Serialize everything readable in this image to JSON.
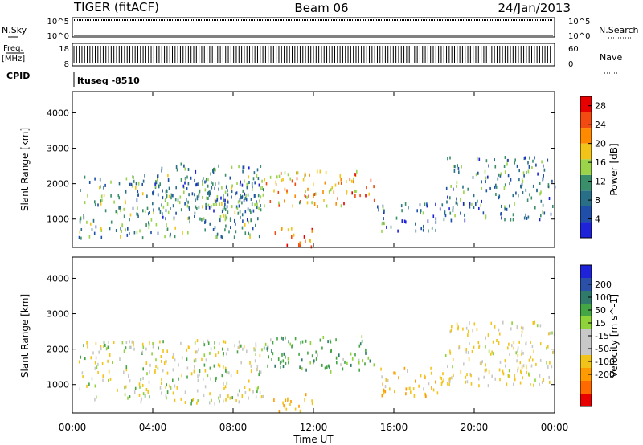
{
  "header": {
    "station": "TIGER (fitACF)",
    "beam": "Beam 06",
    "date": "24/Jan/2013"
  },
  "top_panels": {
    "nsky_label": "N.Sky",
    "nsearch_label": "N.Search",
    "nsky_ticks": [
      "10^5",
      "10^0"
    ],
    "nsearch_ticks": [
      "10^5",
      "10^0"
    ],
    "freq_label_1": "Freq.",
    "freq_label_2": "[MHz]",
    "freq_ticks": [
      "18",
      "8"
    ],
    "nave_label": "Nave",
    "nave_ticks": [
      "60",
      "0"
    ],
    "cpid_label": "CPID",
    "cpid_value": "ltuseq -8510"
  },
  "colors": {
    "power_scale": [
      "#1e22d8",
      "#1f4fa8",
      "#2a6f88",
      "#3a8f6a",
      "#9bd34a",
      "#f2c41a",
      "#ff8a00",
      "#f24a10",
      "#e80000"
    ],
    "velocity_scale": [
      "#1e22d8",
      "#2a50a8",
      "#2f7a6a",
      "#44a544",
      "#8fd33a",
      "#c8c8c8",
      "#c8c8c8",
      "#f2c41a",
      "#ff9a00",
      "#ff6a00",
      "#e80000"
    ]
  },
  "chart_data": [
    {
      "type": "heatmap",
      "title": "Power",
      "xlabel": "",
      "ylabel": "Slant Range [km]",
      "x_ticks": [
        "00:00",
        "04:00",
        "08:00",
        "12:00",
        "16:00",
        "20:00",
        "00:00"
      ],
      "x_hours": [
        0,
        4,
        8,
        12,
        16,
        20,
        24
      ],
      "xlim": [
        0,
        24
      ],
      "y_ticks": [
        1000,
        2000,
        3000,
        4000
      ],
      "ylim": [
        200,
        4600
      ],
      "colorbar_label": "Power [dB]",
      "colorbar_ticks": [
        4,
        8,
        12,
        16,
        20,
        24,
        28
      ],
      "colorbar_range": [
        0,
        30
      ],
      "regions": [
        {
          "t_start": 0.3,
          "t_end": 9.5,
          "r_min": 500,
          "r_max": 2300,
          "value": 11
        },
        {
          "t_start": 4,
          "t_end": 9.5,
          "r_min": 1000,
          "r_max": 2600,
          "value": 9
        },
        {
          "t_start": 9.5,
          "t_end": 15,
          "r_min": 1400,
          "r_max": 2400,
          "value": 20
        },
        {
          "t_start": 15,
          "t_end": 18.5,
          "r_min": 700,
          "r_max": 1500,
          "value": 8
        },
        {
          "t_start": 18.5,
          "t_end": 24,
          "r_min": 1000,
          "r_max": 2800,
          "value": 9
        },
        {
          "t_start": 10,
          "t_end": 12,
          "r_min": 250,
          "r_max": 800,
          "value": 22
        }
      ]
    },
    {
      "type": "heatmap",
      "title": "Velocity",
      "xlabel": "Time UT",
      "ylabel": "Slant Range [km]",
      "x_ticks": [
        "00:00",
        "04:00",
        "08:00",
        "12:00",
        "16:00",
        "20:00",
        "00:00"
      ],
      "x_hours": [
        0,
        4,
        8,
        12,
        16,
        20,
        24
      ],
      "xlim": [
        0,
        24
      ],
      "y_ticks": [
        1000,
        2000,
        3000,
        4000
      ],
      "ylim": [
        200,
        4600
      ],
      "colorbar_label": "Velocity [m s^-1]",
      "colorbar_ticks": [
        "200",
        "100",
        "50",
        "15",
        "-15",
        "-50",
        "-100",
        "-200"
      ],
      "regions": [
        {
          "t_start": 0.3,
          "t_end": 9.5,
          "r_min": 500,
          "r_max": 2300,
          "value": -5
        },
        {
          "t_start": 9.5,
          "t_end": 15,
          "r_min": 1400,
          "r_max": 2400,
          "value": 30
        },
        {
          "t_start": 15,
          "t_end": 18.5,
          "r_min": 700,
          "r_max": 1500,
          "value": -40
        },
        {
          "t_start": 18.5,
          "t_end": 24,
          "r_min": 1000,
          "r_max": 2800,
          "value": -20
        },
        {
          "t_start": 10,
          "t_end": 12,
          "r_min": 250,
          "r_max": 800,
          "value": -60
        }
      ]
    }
  ]
}
